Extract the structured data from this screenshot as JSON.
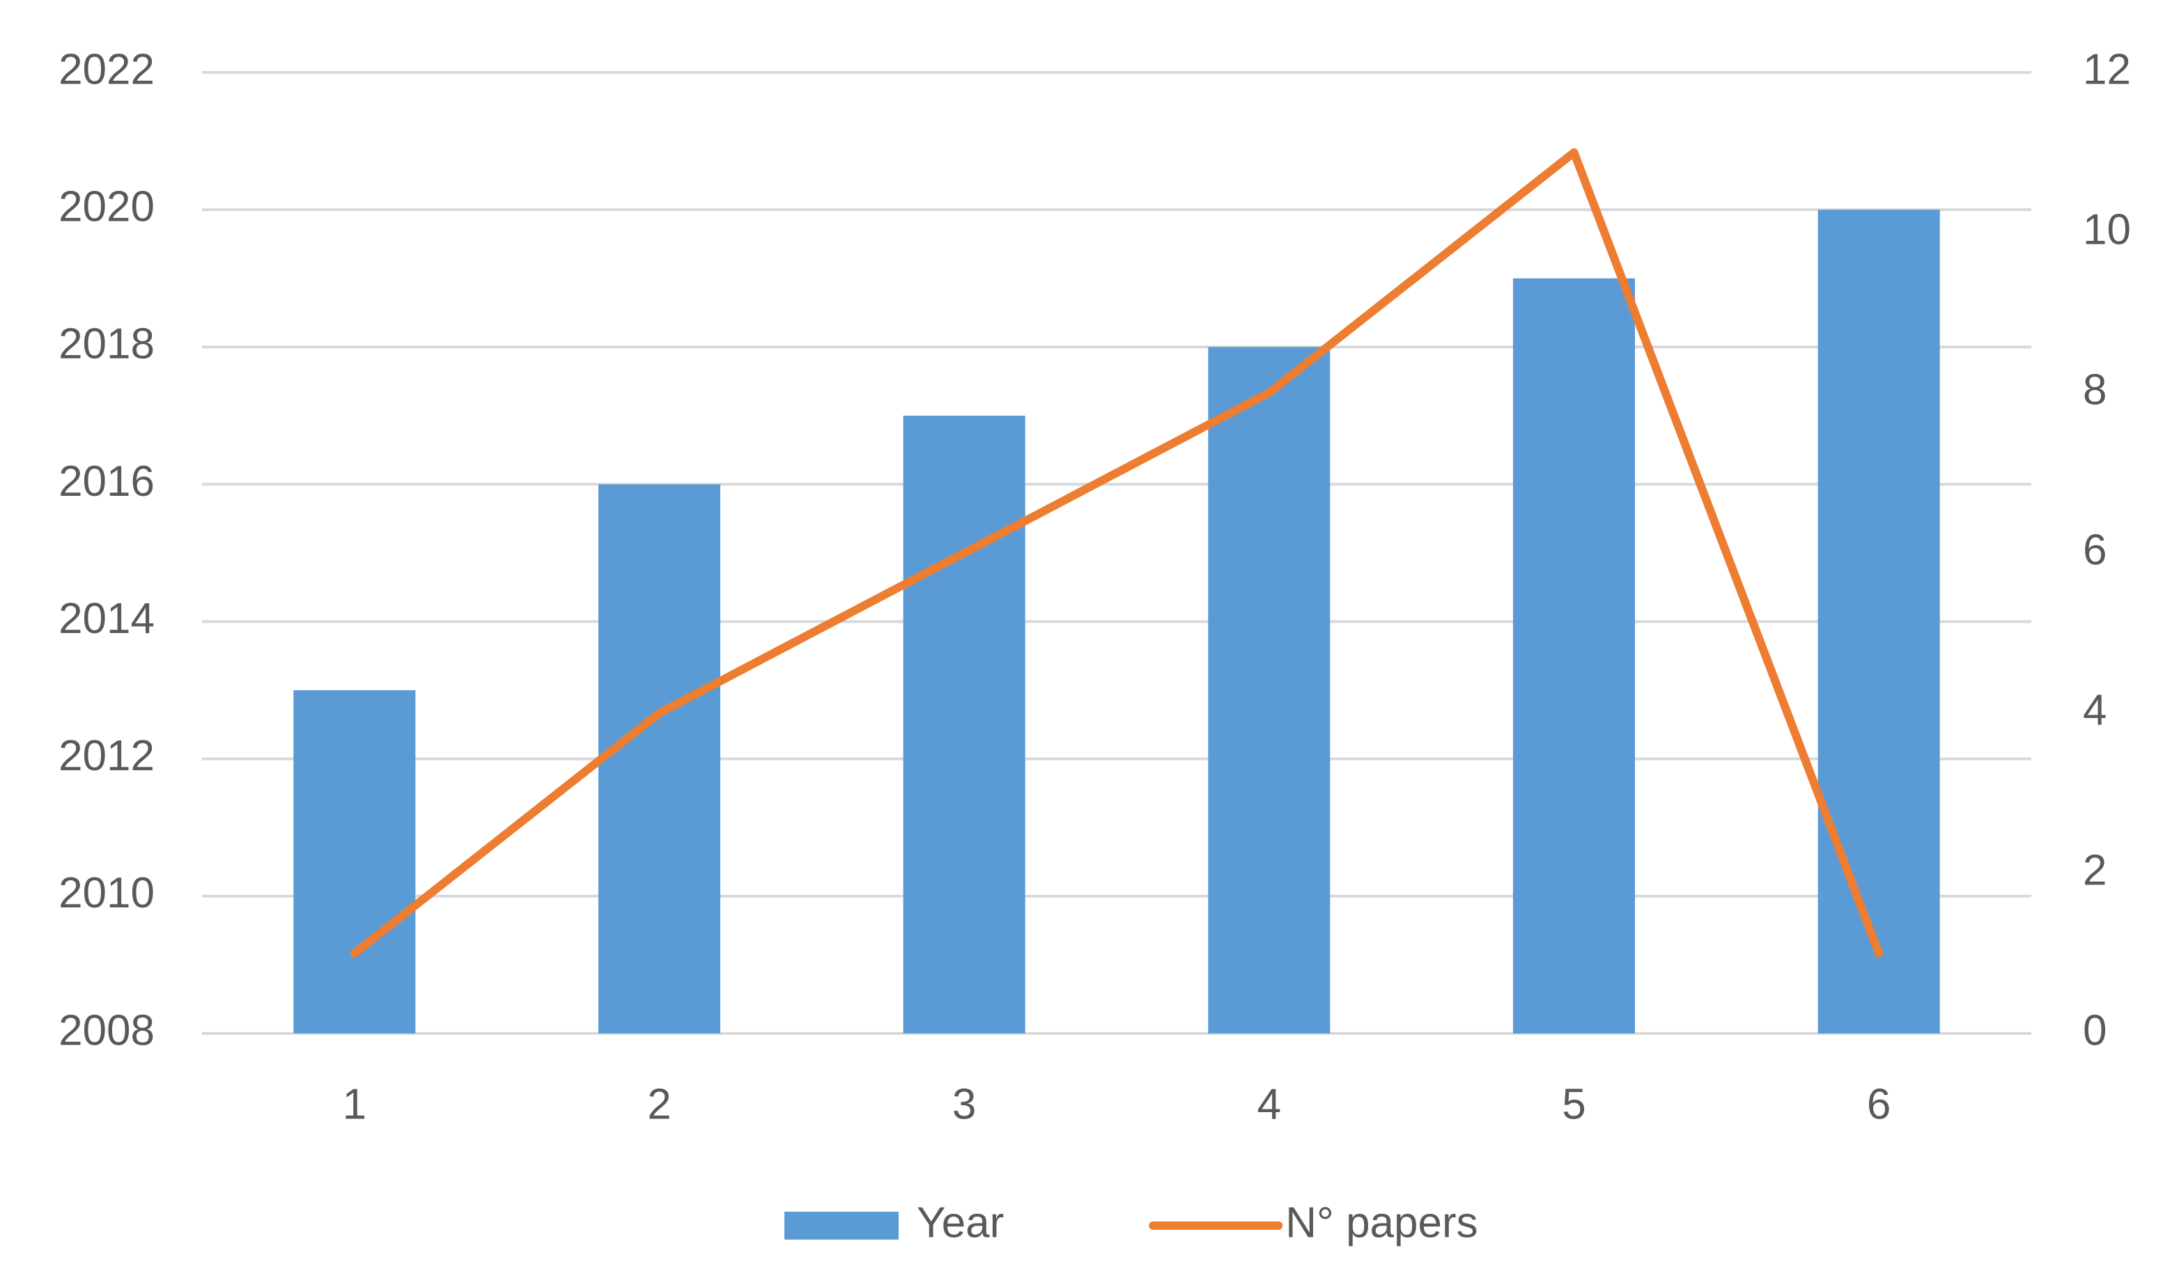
{
  "chart_data": {
    "type": "bar",
    "categories": [
      "1",
      "2",
      "3",
      "4",
      "5",
      "6"
    ],
    "series": [
      {
        "name": "Year",
        "type": "bar",
        "color": "#5b9bd5",
        "values": [
          2013,
          2016,
          2017,
          2018,
          2019,
          2020
        ]
      },
      {
        "name": "N° papers",
        "type": "line",
        "axis": "y2",
        "color": "#ed7d31",
        "values": [
          1,
          4,
          6,
          8,
          11,
          1
        ]
      }
    ],
    "ylim": [
      2008,
      2022
    ],
    "yticks": [
      2008,
      2010,
      2012,
      2014,
      2016,
      2018,
      2020,
      2022
    ],
    "y2lim": [
      0,
      12
    ],
    "y2ticks": [
      0,
      2,
      4,
      6,
      8,
      10,
      12
    ],
    "grid": true,
    "legend": "bottom"
  }
}
